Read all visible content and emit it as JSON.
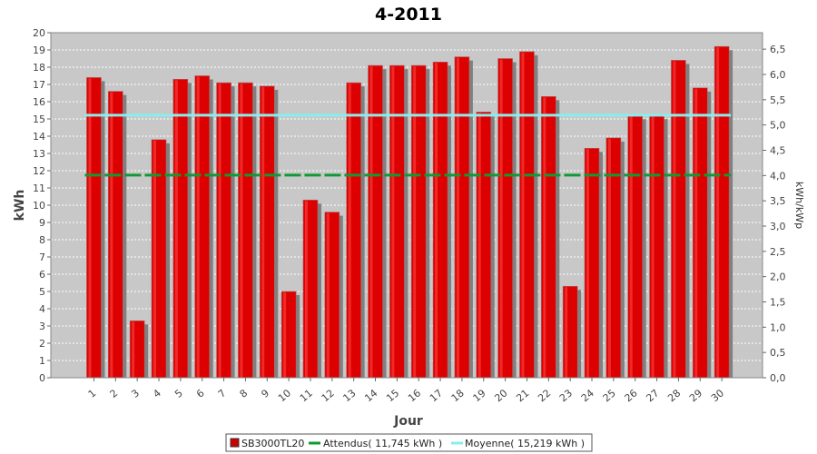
{
  "chart_data": {
    "type": "bar",
    "title": "4-2011",
    "xlabel": "Jour",
    "ylabel": "kWh",
    "ylabel_right": "kWh/kWp",
    "ylim": [
      0,
      20
    ],
    "ylim_right": [
      0,
      6.5
    ],
    "categories": [
      "1",
      "2",
      "3",
      "4",
      "5",
      "6",
      "7",
      "8",
      "9",
      "10",
      "11",
      "12",
      "13",
      "14",
      "15",
      "16",
      "17",
      "18",
      "19",
      "20",
      "21",
      "22",
      "23",
      "24",
      "25",
      "26",
      "27",
      "28",
      "29",
      "30"
    ],
    "series": [
      {
        "name": "SB3000TL20",
        "type": "bar",
        "values": [
          17.4,
          16.6,
          3.3,
          13.8,
          17.3,
          17.5,
          17.1,
          17.1,
          16.9,
          5.0,
          10.3,
          9.6,
          17.1,
          18.1,
          18.1,
          18.1,
          18.3,
          18.6,
          15.4,
          18.5,
          18.9,
          16.3,
          5.3,
          13.3,
          13.9,
          15.2,
          15.2,
          18.4,
          16.8,
          19.2
        ],
        "color": "#dd0000"
      },
      {
        "name": "Attendus( 11,745 kWh )",
        "type": "line",
        "constant": 11.745,
        "color": "#119933",
        "dashed": true
      },
      {
        "name": "Moyenne( 15,219 kWh )",
        "type": "line",
        "constant": 15.219,
        "color": "#88eeee",
        "dashed": false
      }
    ],
    "y_ticks": [
      "0",
      "1",
      "2",
      "3",
      "4",
      "5",
      "6",
      "7",
      "8",
      "9",
      "10",
      "11",
      "12",
      "13",
      "14",
      "15",
      "16",
      "17",
      "18",
      "19",
      "20"
    ],
    "y_ticks_right": [
      "0,0",
      "0,5",
      "1,0",
      "1,5",
      "2,0",
      "2,5",
      "3,0",
      "3,5",
      "4,0",
      "4,5",
      "5,0",
      "5,5",
      "6,0",
      "6,5"
    ],
    "grid": true,
    "legend_position": "bottom",
    "colors": {
      "plot_background": "#c8c8c8",
      "grid": "#ffffff",
      "bar_shadow": "#808080"
    }
  }
}
